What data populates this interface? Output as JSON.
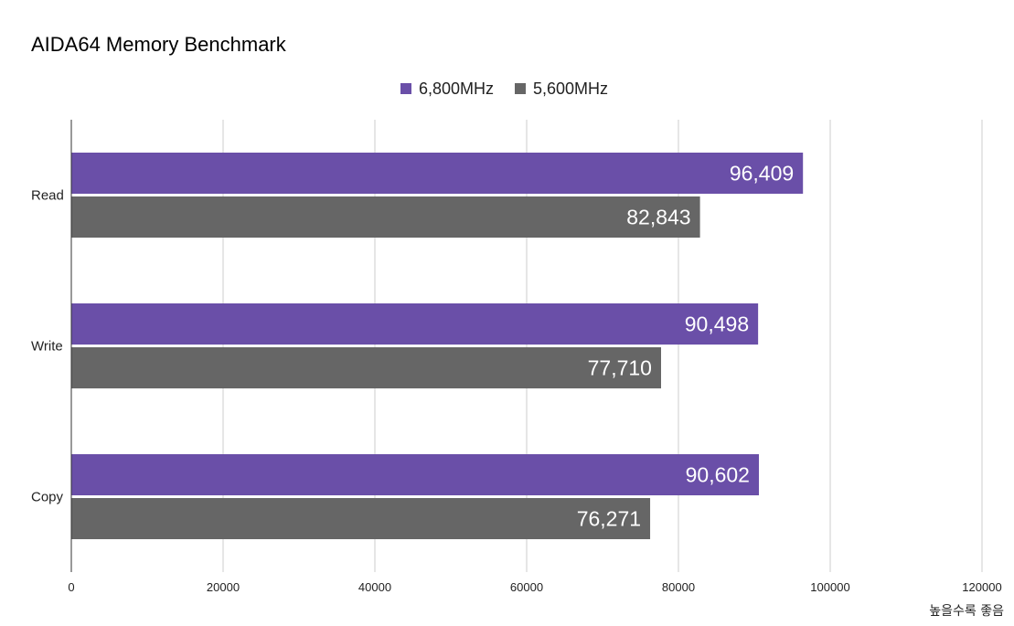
{
  "chart_data": {
    "type": "bar",
    "orientation": "horizontal",
    "title": "AIDA64 Memory Benchmark",
    "xlabel": "높을수록 좋음",
    "ylabel": "",
    "categories": [
      "Read",
      "Write",
      "Copy"
    ],
    "series": [
      {
        "name": "6,800MHz",
        "color": "#6a4fa8",
        "values": [
          96409,
          90498,
          90602
        ],
        "labels": [
          "96,409",
          "90,498",
          "90,602"
        ]
      },
      {
        "name": "5,600MHz",
        "color": "#666666",
        "values": [
          82843,
          77710,
          76271
        ],
        "labels": [
          "82,843",
          "77,710",
          "76,271"
        ]
      }
    ],
    "xlim": [
      0,
      120000
    ],
    "ticks": [
      "0",
      "20000",
      "40000",
      "60000",
      "80000",
      "100000",
      "120000"
    ],
    "tick_values": [
      0,
      20000,
      40000,
      60000,
      80000,
      100000,
      120000
    ],
    "legend_position": "top-center",
    "grid": true
  }
}
